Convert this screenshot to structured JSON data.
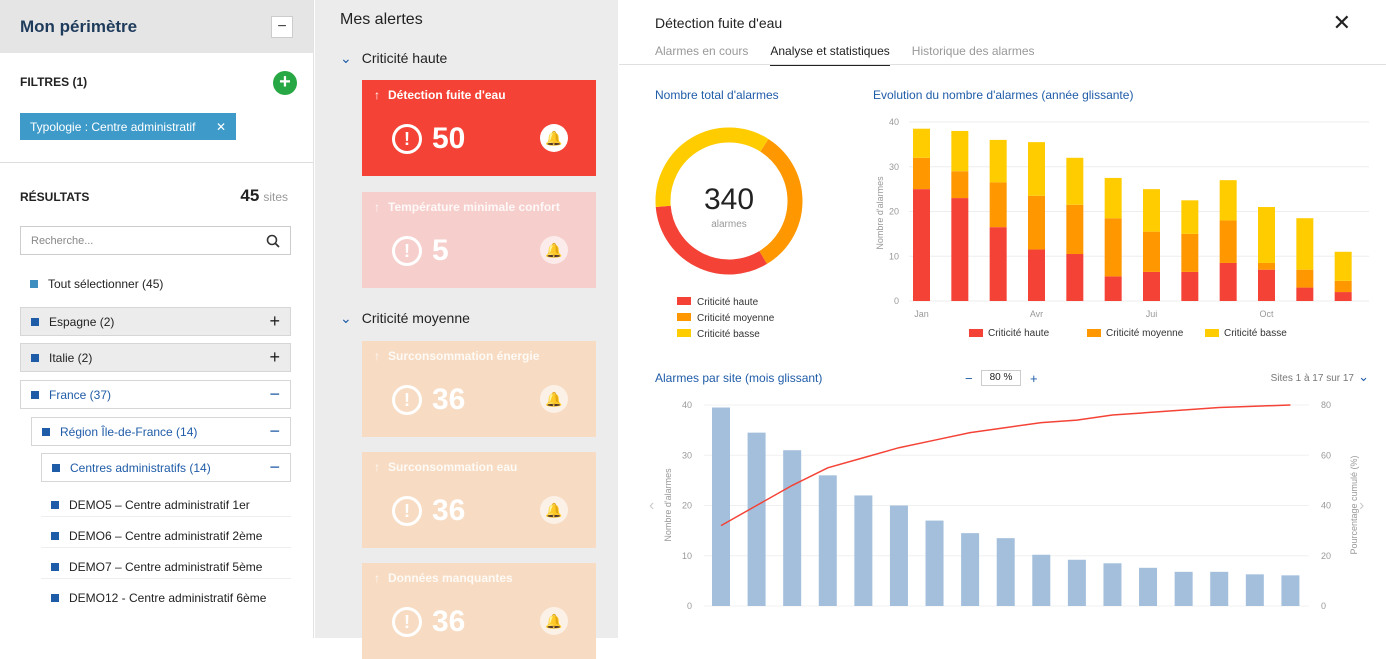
{
  "left": {
    "title": "Mon périmètre",
    "collapse": "−",
    "filters_label": "FILTRES (1)",
    "add": "+",
    "chip": "Typologie : Centre administratif",
    "chip_close": "✕",
    "results_label": "RÉSULTATS",
    "results_count": "45",
    "results_unit": "sites",
    "search_placeholder": "Recherche...",
    "select_all": "Tout sélectionner (45)",
    "tree": [
      {
        "label": "Espagne (2)",
        "toggle": "+"
      },
      {
        "label": "Italie (2)",
        "toggle": "+"
      },
      {
        "label": "France (37)",
        "toggle": "−"
      },
      {
        "label": "Région Île-de-France (14)",
        "toggle": "−"
      },
      {
        "label": "Centres administratifs (14)",
        "toggle": "−"
      }
    ],
    "sites": [
      "DEMO5 – Centre administratif 1er",
      "DEMO6 – Centre administratif 2ème",
      "DEMO7 – Centre administratif 5ème",
      "DEMO12 - Centre administratif 6ème"
    ]
  },
  "mid": {
    "title": "Mes alertes",
    "sec1": "Criticité haute",
    "sec2": "Criticité moyenne",
    "cards": [
      {
        "title": "Détection fuite d'eau",
        "value": "50",
        "color": "#f44336"
      },
      {
        "title": "Température minimale confort",
        "value": "5",
        "color": "#f6cfcc"
      },
      {
        "title": "Surconsommation énergie",
        "value": "36",
        "color": "#f7dcc3"
      },
      {
        "title": "Surconsommation eau",
        "value": "36",
        "color": "#f7dcc3"
      },
      {
        "title": "Données manquantes",
        "value": "36",
        "color": "#f7dcc3"
      }
    ]
  },
  "right": {
    "title": "Détection fuite d'eau",
    "close": "✕",
    "tabs": [
      "Alarmes en cours",
      "Analyse et statistiques",
      "Historique des alarmes"
    ],
    "c1_title": "Nombre total d'alarmes",
    "c2_title": "Evolution du nombre d'alarmes (année glissante)",
    "c3_title": "Alarmes par site (mois glissant)",
    "zoom_minus": "−",
    "zoom_value": "80 %",
    "zoom_plus": "+",
    "sites_range": "Sites 1 à 17 sur 17"
  },
  "chart_data": [
    {
      "type": "pie",
      "title": "Nombre total d'alarmes",
      "center_value": "340",
      "center_label": "alarmes",
      "labels": [
        "Criticité haute",
        "Criticité moyenne",
        "Criticité basse"
      ],
      "values": [
        110,
        110,
        120
      ],
      "colors": [
        "#f44336",
        "#ff9800",
        "#ffcc00"
      ]
    },
    {
      "type": "bar",
      "title": "Evolution du nombre d'alarmes (année glissante)",
      "ylabel": "Nombre d'alarmes",
      "ylim": [
        0,
        40
      ],
      "yticks": [
        0,
        10,
        20,
        30,
        40
      ],
      "xticks": [
        "Jan",
        "Avr",
        "Jui",
        "Oct"
      ],
      "categories": [
        "1",
        "2",
        "3",
        "4",
        "5",
        "6",
        "7",
        "8",
        "9",
        "10",
        "11",
        "12"
      ],
      "series": [
        {
          "name": "Criticité haute",
          "color": "#f44336",
          "values": [
            25,
            23,
            16.5,
            11.5,
            10.5,
            5.5,
            6.5,
            6.5,
            8.5,
            7,
            3,
            2
          ]
        },
        {
          "name": "Criticité moyenne",
          "color": "#ff9800",
          "values": [
            7,
            6,
            10,
            12,
            11,
            13,
            9,
            8.5,
            9.5,
            1.5,
            4,
            2.5
          ]
        },
        {
          "name": "Criticité basse",
          "color": "#ffcc00",
          "values": [
            6.5,
            9,
            9.5,
            12,
            10.5,
            9,
            9.5,
            7.5,
            9,
            12.5,
            11.5,
            6.5
          ]
        }
      ]
    },
    {
      "type": "bar",
      "title": "Alarmes par site (mois glissant)",
      "ylabel": "Nombre d'alarmes",
      "y2label": "Pourcentage cumulé (%)",
      "ylim": [
        0,
        40
      ],
      "yticks": [
        0,
        10,
        20,
        30,
        40
      ],
      "y2ticks": [
        0,
        20,
        40,
        60,
        80
      ],
      "values": [
        39.5,
        34.5,
        31,
        26,
        22,
        20,
        17,
        14.5,
        13.5,
        10.2,
        9.2,
        8.5,
        7.6,
        6.8,
        6.8,
        6.3,
        6.1
      ],
      "cumulative_percent": [
        32,
        40,
        48,
        55,
        59,
        63,
        66,
        69,
        71,
        73,
        74,
        76,
        77,
        78,
        79,
        79.5,
        80
      ]
    }
  ]
}
